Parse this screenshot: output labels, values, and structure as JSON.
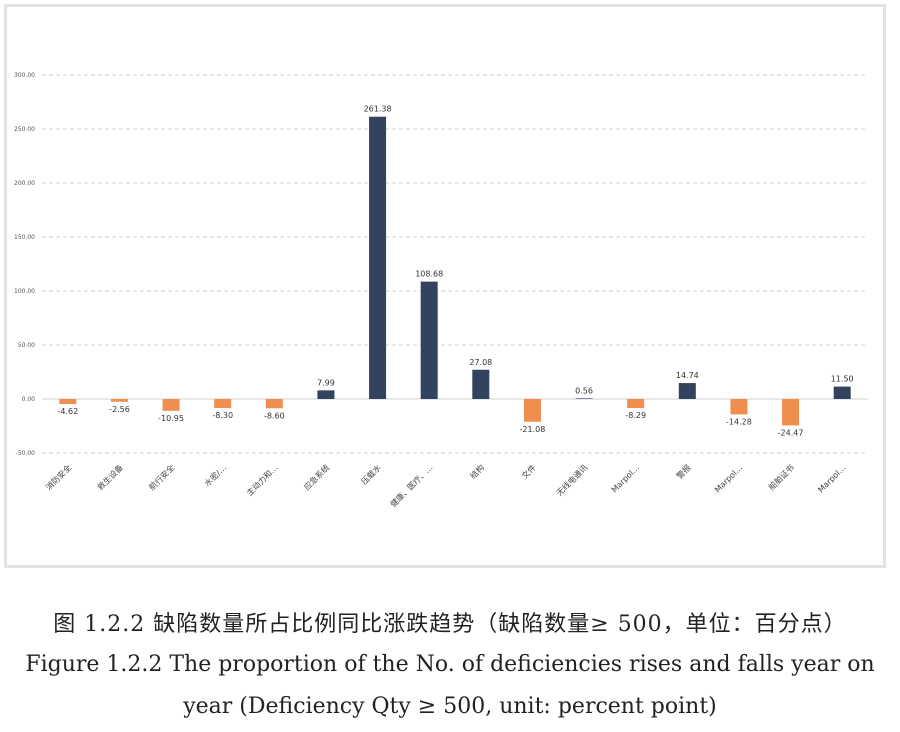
{
  "chart_data": {
    "type": "bar",
    "categories": [
      "消防安全",
      "救生设备",
      "航行安全",
      "水密/…",
      "主动力和…",
      "应急系统",
      "压载水",
      "健康、医疗、…",
      "结构",
      "文件",
      "无线电通讯",
      "Marpol…",
      "警报",
      "Marpol…",
      "船舶证书",
      "Marpol…"
    ],
    "values": [
      -4.62,
      -2.56,
      -10.95,
      -8.3,
      -8.6,
      7.99,
      261.38,
      108.68,
      27.08,
      -21.08,
      0.56,
      -8.29,
      14.74,
      -14.28,
      -24.47,
      11.5
    ],
    "value_labels": [
      "-4.62",
      "-2.56",
      "-10.95",
      "-8.30",
      "-8.60",
      "7.99",
      "261.38",
      "108.68",
      "27.08",
      "-21.08",
      "0.56",
      "-8.29",
      "14.74",
      "-14.28",
      "-24.47",
      "11.50"
    ],
    "yticks": [
      "-50.00",
      "0.00",
      "50.00",
      "100.00",
      "150.00",
      "200.00",
      "250.00",
      "300.00"
    ],
    "ylim": [
      -50,
      300
    ],
    "grid": true,
    "colors": {
      "positive": "#33425f",
      "negative": "#ef8f4f"
    }
  },
  "caption": {
    "cn": "图 1.2.2 缺陷数量所占比例同比涨跌趋势（缺陷数量≥ 500，单位：百分点）",
    "en_line1": "Figure 1.2.2 The proportion of the No. of deficiencies rises and falls year on",
    "en_line2": "year (Deficiency Qty ≥ 500, unit: percent point)"
  }
}
